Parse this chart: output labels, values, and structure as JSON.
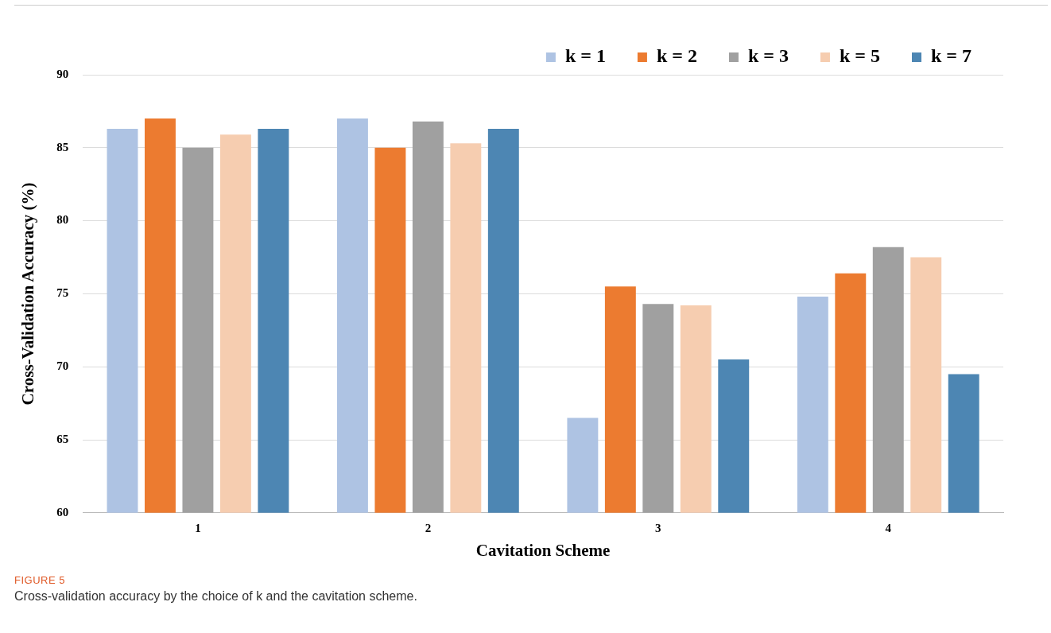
{
  "chart_data": {
    "type": "bar",
    "xlabel": "Cavitation Scheme",
    "ylabel": "Cross-Validation Accuracy (%)",
    "categories": [
      "1",
      "2",
      "3",
      "4"
    ],
    "series": [
      {
        "name": "k = 1",
        "color": "#aec3e3",
        "values": [
          86.3,
          87.0,
          66.5,
          74.8
        ]
      },
      {
        "name": "k = 2",
        "color": "#ec7b30",
        "values": [
          87.0,
          85.0,
          75.5,
          76.4
        ]
      },
      {
        "name": "k = 3",
        "color": "#a0a0a0",
        "values": [
          85.0,
          86.8,
          74.3,
          78.2
        ]
      },
      {
        "name": "k = 5",
        "color": "#f6cdb0",
        "values": [
          85.9,
          85.3,
          74.2,
          77.5
        ]
      },
      {
        "name": "k = 7",
        "color": "#4d86b3",
        "values": [
          86.3,
          86.3,
          70.5,
          69.5
        ]
      }
    ],
    "ylim": [
      60,
      90
    ],
    "yticks": [
      60,
      65,
      70,
      75,
      80,
      85,
      90
    ],
    "grid": "y",
    "legend": "top right",
    "annotations": [
      "FIGURE 5",
      "Cross-validation accuracy by the choice of k and the cavitation scheme."
    ]
  }
}
